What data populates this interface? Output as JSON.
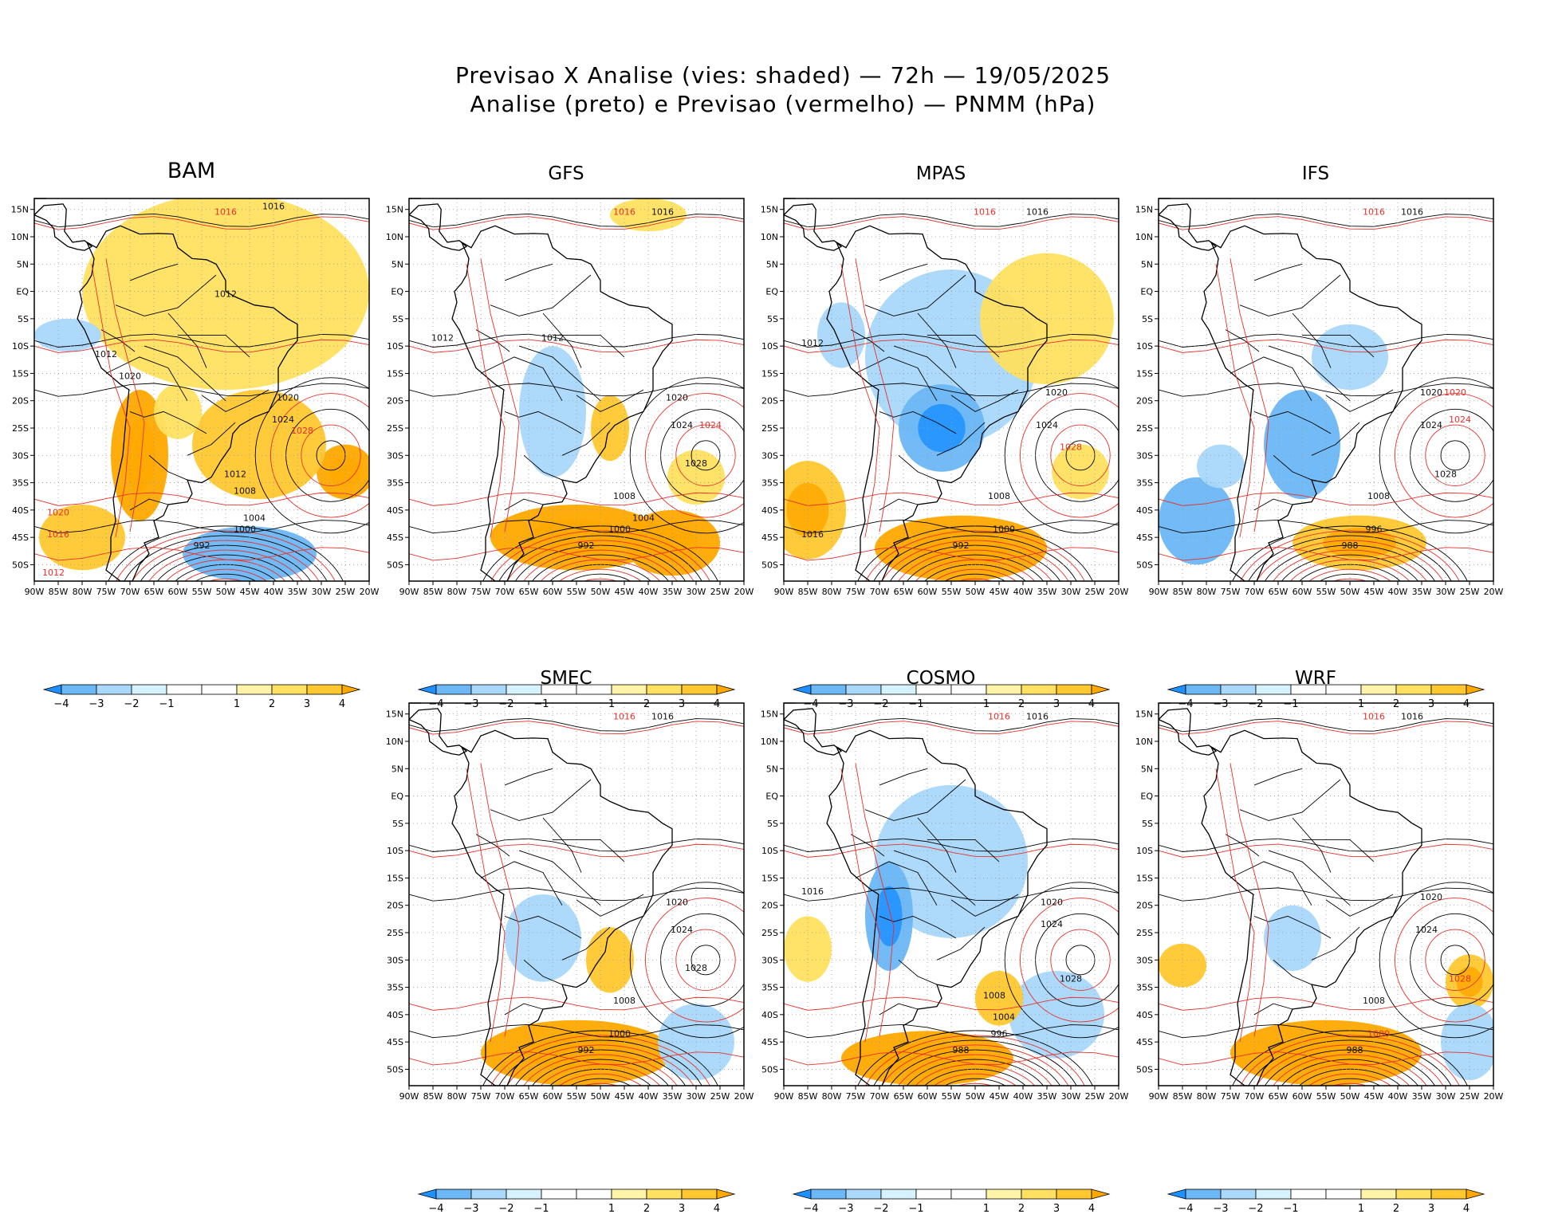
{
  "title": {
    "line1": "Previsao X Analise (vies: shaded) — 72h — 19/05/2025",
    "line2": "Analise (preto) e Previsao (vermelho) — PNMM (hPa)"
  },
  "colors": {
    "neg4": "#1e90ff",
    "neg3": "#6cb7f5",
    "neg2": "#a9d8fb",
    "neg1": "#d6f2ff",
    "pos1": "#fff4a8",
    "pos2": "#ffe060",
    "pos3": "#ffc830",
    "pos4": "#ffa800",
    "analysis_contour": "#000000",
    "forecast_contour": "#e8302a",
    "coast": "#000000",
    "grid": "#9a9a9a"
  },
  "chart_data": {
    "type": "map-contour",
    "lon_ticks": [
      "90W",
      "85W",
      "80W",
      "75W",
      "70W",
      "65W",
      "60W",
      "55W",
      "50W",
      "45W",
      "40W",
      "35W",
      "30W",
      "25W",
      "20W"
    ],
    "lat_ticks": [
      "15N",
      "10N",
      "5N",
      "EQ",
      "5S",
      "10S",
      "15S",
      "20S",
      "25S",
      "30S",
      "35S",
      "40S",
      "45S",
      "50S"
    ],
    "lon_range": [
      -90,
      -20
    ],
    "lat_range": [
      -53,
      17
    ],
    "colorbar_labels": [
      "−4",
      "−3",
      "−2",
      "−1",
      "1",
      "2",
      "3",
      "4"
    ],
    "panels": [
      {
        "model": "BAM",
        "bias": [
          {
            "lon": -50,
            "lat": 0,
            "rx": 30,
            "ry": 18,
            "v": 1.6
          },
          {
            "lon": -25,
            "lat": -33,
            "rx": 6,
            "ry": 5,
            "v": 3.2
          },
          {
            "lon": -43,
            "lat": -28,
            "rx": 14,
            "ry": 10,
            "v": 2.2
          },
          {
            "lon": -68,
            "lat": -30,
            "rx": 6,
            "ry": 12,
            "v": 3.0
          },
          {
            "lon": -83,
            "lat": -8,
            "rx": 7,
            "ry": 3,
            "v": -1.6
          },
          {
            "lon": -80,
            "lat": -45,
            "rx": 9,
            "ry": 6,
            "v": 2.0
          },
          {
            "lon": -45,
            "lat": -48,
            "rx": 14,
            "ry": 5,
            "v": -2.2
          },
          {
            "lon": -60,
            "lat": -22,
            "rx": 5,
            "ry": 5,
            "v": 1.4
          }
        ],
        "labels": [
          {
            "lon": -40,
            "lat": 15,
            "text": "1016",
            "c": "a"
          },
          {
            "lon": -50,
            "lat": 14,
            "text": "1016",
            "c": "f"
          },
          {
            "lon": -37,
            "lat": -20,
            "text": "1020",
            "c": "a"
          },
          {
            "lon": -38,
            "lat": -24,
            "text": "1024",
            "c": "a"
          },
          {
            "lon": -34,
            "lat": -26,
            "text": "1028",
            "c": "f"
          },
          {
            "lon": -48,
            "lat": -34,
            "text": "1012",
            "c": "a"
          },
          {
            "lon": -46,
            "lat": -37,
            "text": "1008",
            "c": "a"
          },
          {
            "lon": -44,
            "lat": -42,
            "text": "1004",
            "c": "a"
          },
          {
            "lon": -46,
            "lat": -44,
            "text": "1000",
            "c": "a"
          },
          {
            "lon": -55,
            "lat": -47,
            "text": "992",
            "c": "a"
          },
          {
            "lon": -85,
            "lat": -41,
            "text": "1020",
            "c": "f"
          },
          {
            "lon": -85,
            "lat": -45,
            "text": "1016",
            "c": "f"
          },
          {
            "lon": -86,
            "lat": -52,
            "text": "1012",
            "c": "f"
          },
          {
            "lon": -75,
            "lat": -12,
            "text": "1012",
            "c": "a"
          },
          {
            "lon": -50,
            "lat": -1,
            "text": "1012",
            "c": "a"
          },
          {
            "lon": -70,
            "lat": -16,
            "text": "1020",
            "c": "a"
          }
        ]
      },
      {
        "model": "GFS",
        "bias": [
          {
            "lon": -60,
            "lat": -22,
            "rx": 7,
            "ry": 12,
            "v": -1.6
          },
          {
            "lon": -55,
            "lat": -45,
            "rx": 18,
            "ry": 6,
            "v": 3.4
          },
          {
            "lon": -35,
            "lat": -46,
            "rx": 10,
            "ry": 6,
            "v": 3.0
          },
          {
            "lon": -30,
            "lat": -34,
            "rx": 6,
            "ry": 5,
            "v": 1.4
          },
          {
            "lon": -40,
            "lat": 14,
            "rx": 8,
            "ry": 3,
            "v": 1.2
          },
          {
            "lon": -48,
            "lat": -25,
            "rx": 4,
            "ry": 6,
            "v": 2.4
          }
        ],
        "labels": [
          {
            "lon": -37,
            "lat": 14,
            "text": "1016",
            "c": "a"
          },
          {
            "lon": -45,
            "lat": 14,
            "text": "1016",
            "c": "f"
          },
          {
            "lon": -34,
            "lat": -20,
            "text": "1020",
            "c": "a"
          },
          {
            "lon": -27,
            "lat": -25,
            "text": "1024",
            "c": "f"
          },
          {
            "lon": -33,
            "lat": -25,
            "text": "1024",
            "c": "a"
          },
          {
            "lon": -30,
            "lat": -32,
            "text": "1028",
            "c": "a"
          },
          {
            "lon": -45,
            "lat": -38,
            "text": "1008",
            "c": "a"
          },
          {
            "lon": -41,
            "lat": -42,
            "text": "1004",
            "c": "a"
          },
          {
            "lon": -46,
            "lat": -44,
            "text": "1000",
            "c": "a"
          },
          {
            "lon": -53,
            "lat": -47,
            "text": "992",
            "c": "a"
          },
          {
            "lon": -83,
            "lat": -9,
            "text": "1012",
            "c": "a"
          },
          {
            "lon": -60,
            "lat": -9,
            "text": "1012",
            "c": "a"
          }
        ]
      },
      {
        "model": "MPAS",
        "bias": [
          {
            "lon": -55,
            "lat": -12,
            "rx": 18,
            "ry": 16,
            "v": -1.8
          },
          {
            "lon": -57,
            "lat": -25,
            "rx": 9,
            "ry": 8,
            "v": -2.6
          },
          {
            "lon": -35,
            "lat": -5,
            "rx": 14,
            "ry": 12,
            "v": 1.4
          },
          {
            "lon": -85,
            "lat": -40,
            "rx": 8,
            "ry": 9,
            "v": 2.8
          },
          {
            "lon": -53,
            "lat": -47,
            "rx": 18,
            "ry": 6,
            "v": 3.4
          },
          {
            "lon": -28,
            "lat": -33,
            "rx": 6,
            "ry": 5,
            "v": 1.6
          },
          {
            "lon": -78,
            "lat": -8,
            "rx": 5,
            "ry": 6,
            "v": -1.5
          }
        ],
        "labels": [
          {
            "lon": -37,
            "lat": 14,
            "text": "1016",
            "c": "a"
          },
          {
            "lon": -48,
            "lat": 14,
            "text": "1016",
            "c": "f"
          },
          {
            "lon": -33,
            "lat": -19,
            "text": "1020",
            "c": "a"
          },
          {
            "lon": -35,
            "lat": -25,
            "text": "1024",
            "c": "a"
          },
          {
            "lon": -30,
            "lat": -29,
            "text": "1028",
            "c": "f"
          },
          {
            "lon": -45,
            "lat": -38,
            "text": "1008",
            "c": "a"
          },
          {
            "lon": -44,
            "lat": -44,
            "text": "1000",
            "c": "a"
          },
          {
            "lon": -53,
            "lat": -47,
            "text": "992",
            "c": "a"
          },
          {
            "lon": -84,
            "lat": -10,
            "text": "1012",
            "c": "a"
          },
          {
            "lon": -84,
            "lat": -45,
            "text": "1016",
            "c": "a"
          }
        ]
      },
      {
        "model": "IFS",
        "bias": [
          {
            "lon": -60,
            "lat": -28,
            "rx": 8,
            "ry": 10,
            "v": -2.0
          },
          {
            "lon": -82,
            "lat": -42,
            "rx": 8,
            "ry": 8,
            "v": -2.2
          },
          {
            "lon": -48,
            "lat": -46,
            "rx": 14,
            "ry": 5,
            "v": 2.6
          },
          {
            "lon": -77,
            "lat": -32,
            "rx": 5,
            "ry": 4,
            "v": -1.8
          },
          {
            "lon": -50,
            "lat": -12,
            "rx": 8,
            "ry": 6,
            "v": -1.3
          }
        ],
        "labels": [
          {
            "lon": -37,
            "lat": 14,
            "text": "1016",
            "c": "a"
          },
          {
            "lon": -45,
            "lat": 14,
            "text": "1016",
            "c": "f"
          },
          {
            "lon": -33,
            "lat": -19,
            "text": "1020",
            "c": "a"
          },
          {
            "lon": -28,
            "lat": -19,
            "text": "1020",
            "c": "f"
          },
          {
            "lon": -33,
            "lat": -25,
            "text": "1024",
            "c": "a"
          },
          {
            "lon": -27,
            "lat": -24,
            "text": "1024",
            "c": "f"
          },
          {
            "lon": -30,
            "lat": -34,
            "text": "1028",
            "c": "a"
          },
          {
            "lon": -44,
            "lat": -38,
            "text": "1008",
            "c": "a"
          },
          {
            "lon": -45,
            "lat": -44,
            "text": "996",
            "c": "a"
          },
          {
            "lon": -50,
            "lat": -47,
            "text": "988",
            "c": "a"
          }
        ]
      },
      {
        "model": "SMEC",
        "bias": [
          {
            "lon": -62,
            "lat": -26,
            "rx": 8,
            "ry": 8,
            "v": -1.8
          },
          {
            "lon": -55,
            "lat": -47,
            "rx": 20,
            "ry": 6,
            "v": 3.4
          },
          {
            "lon": -48,
            "lat": -30,
            "rx": 5,
            "ry": 6,
            "v": 2.2
          },
          {
            "lon": -30,
            "lat": -45,
            "rx": 8,
            "ry": 7,
            "v": -1.6
          }
        ],
        "labels": [
          {
            "lon": -37,
            "lat": 14,
            "text": "1016",
            "c": "a"
          },
          {
            "lon": -45,
            "lat": 14,
            "text": "1016",
            "c": "f"
          },
          {
            "lon": -34,
            "lat": -20,
            "text": "1020",
            "c": "a"
          },
          {
            "lon": -33,
            "lat": -25,
            "text": "1024",
            "c": "a"
          },
          {
            "lon": -30,
            "lat": -32,
            "text": "1028",
            "c": "a"
          },
          {
            "lon": -45,
            "lat": -38,
            "text": "1008",
            "c": "a"
          },
          {
            "lon": -46,
            "lat": -44,
            "text": "1000",
            "c": "a"
          },
          {
            "lon": -53,
            "lat": -47,
            "text": "992",
            "c": "a"
          }
        ]
      },
      {
        "model": "COSMO",
        "bias": [
          {
            "lon": -55,
            "lat": -12,
            "rx": 16,
            "ry": 14,
            "v": -1.6
          },
          {
            "lon": -68,
            "lat": -22,
            "rx": 5,
            "ry": 10,
            "v": -2.6
          },
          {
            "lon": -60,
            "lat": -48,
            "rx": 18,
            "ry": 5,
            "v": 3.4
          },
          {
            "lon": -85,
            "lat": -28,
            "rx": 5,
            "ry": 6,
            "v": 1.6
          },
          {
            "lon": -33,
            "lat": -40,
            "rx": 10,
            "ry": 8,
            "v": -1.8
          },
          {
            "lon": -45,
            "lat": -37,
            "rx": 5,
            "ry": 5,
            "v": 2.4
          }
        ],
        "labels": [
          {
            "lon": -37,
            "lat": 14,
            "text": "1016",
            "c": "a"
          },
          {
            "lon": -45,
            "lat": 14,
            "text": "1016",
            "c": "f"
          },
          {
            "lon": -34,
            "lat": -20,
            "text": "1020",
            "c": "a"
          },
          {
            "lon": -34,
            "lat": -24,
            "text": "1024",
            "c": "a"
          },
          {
            "lon": -30,
            "lat": -34,
            "text": "1028",
            "c": "a"
          },
          {
            "lon": -46,
            "lat": -37,
            "text": "1008",
            "c": "a"
          },
          {
            "lon": -44,
            "lat": -41,
            "text": "1004",
            "c": "a"
          },
          {
            "lon": -45,
            "lat": -44,
            "text": "996",
            "c": "a"
          },
          {
            "lon": -53,
            "lat": -47,
            "text": "988",
            "c": "a"
          },
          {
            "lon": -84,
            "lat": -18,
            "text": "1016",
            "c": "a"
          }
        ]
      },
      {
        "model": "WRF",
        "bias": [
          {
            "lon": -62,
            "lat": -26,
            "rx": 6,
            "ry": 6,
            "v": -1.5
          },
          {
            "lon": -55,
            "lat": -47,
            "rx": 20,
            "ry": 6,
            "v": 3.4
          },
          {
            "lon": -25,
            "lat": -34,
            "rx": 5,
            "ry": 5,
            "v": 2.6
          },
          {
            "lon": -85,
            "lat": -31,
            "rx": 5,
            "ry": 4,
            "v": 2.4
          },
          {
            "lon": -25,
            "lat": -45,
            "rx": 6,
            "ry": 7,
            "v": -1.8
          }
        ],
        "labels": [
          {
            "lon": -37,
            "lat": 14,
            "text": "1016",
            "c": "a"
          },
          {
            "lon": -45,
            "lat": 14,
            "text": "1016",
            "c": "f"
          },
          {
            "lon": -33,
            "lat": -19,
            "text": "1020",
            "c": "a"
          },
          {
            "lon": -34,
            "lat": -25,
            "text": "1024",
            "c": "a"
          },
          {
            "lon": -27,
            "lat": -34,
            "text": "1028",
            "c": "f"
          },
          {
            "lon": -45,
            "lat": -38,
            "text": "1008",
            "c": "a"
          },
          {
            "lon": -44,
            "lat": -44,
            "text": "1000",
            "c": "f"
          },
          {
            "lon": -49,
            "lat": -47,
            "text": "988",
            "c": "a"
          }
        ]
      }
    ]
  }
}
